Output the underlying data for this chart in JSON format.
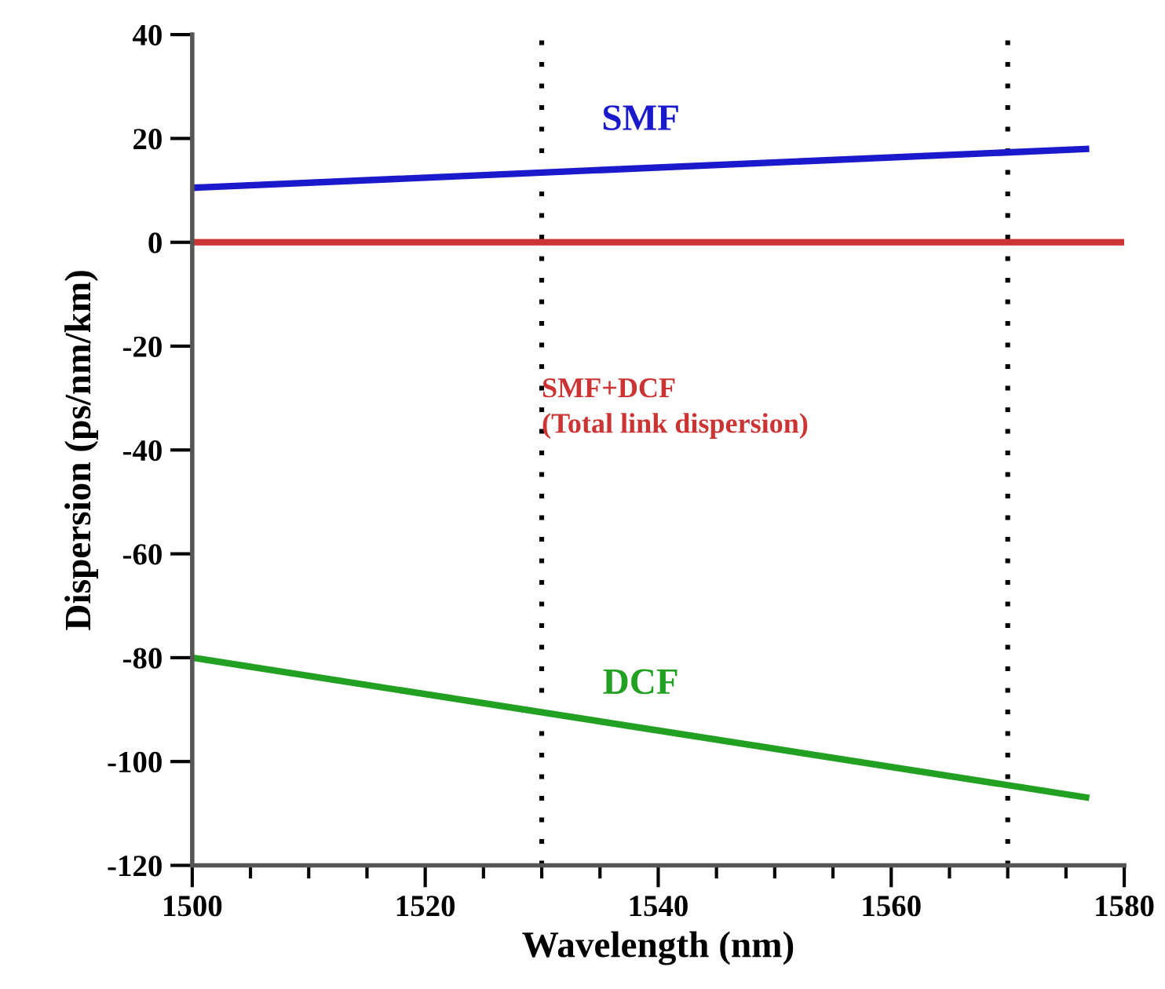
{
  "chart_data": {
    "type": "line",
    "xlabel": "Wavelength (nm)",
    "ylabel": "Dispersion (ps/nm/km)",
    "xlim": [
      1500,
      1580
    ],
    "xticks": [
      1500,
      1520,
      1540,
      1560,
      1580
    ],
    "ylim": [
      -120,
      40
    ],
    "yticks": [
      -120,
      -100,
      -80,
      -60,
      -40,
      -20,
      0,
      20,
      40
    ],
    "grid": false,
    "legend": false,
    "line_style": "solid",
    "marker": "none",
    "series": [
      {
        "name": "SMF",
        "color": "#1a1acc",
        "x": [
          1500,
          1577
        ],
        "values": [
          10.5,
          18
        ]
      },
      {
        "name": "SMF+DCF\n(Total link dispersion)",
        "color": "#cc3333",
        "x": [
          1500,
          1580
        ],
        "values": [
          0,
          0
        ]
      },
      {
        "name": "DCF",
        "color": "#22a022",
        "x": [
          1500,
          1577
        ],
        "values": [
          -80,
          -107
        ]
      }
    ],
    "ref_lines": [
      {
        "axis": "x",
        "value": 1530,
        "color": "#000000",
        "line_style": "dotted"
      },
      {
        "axis": "x",
        "value": 1570,
        "color": "#000000",
        "line_style": "dotted"
      }
    ]
  }
}
